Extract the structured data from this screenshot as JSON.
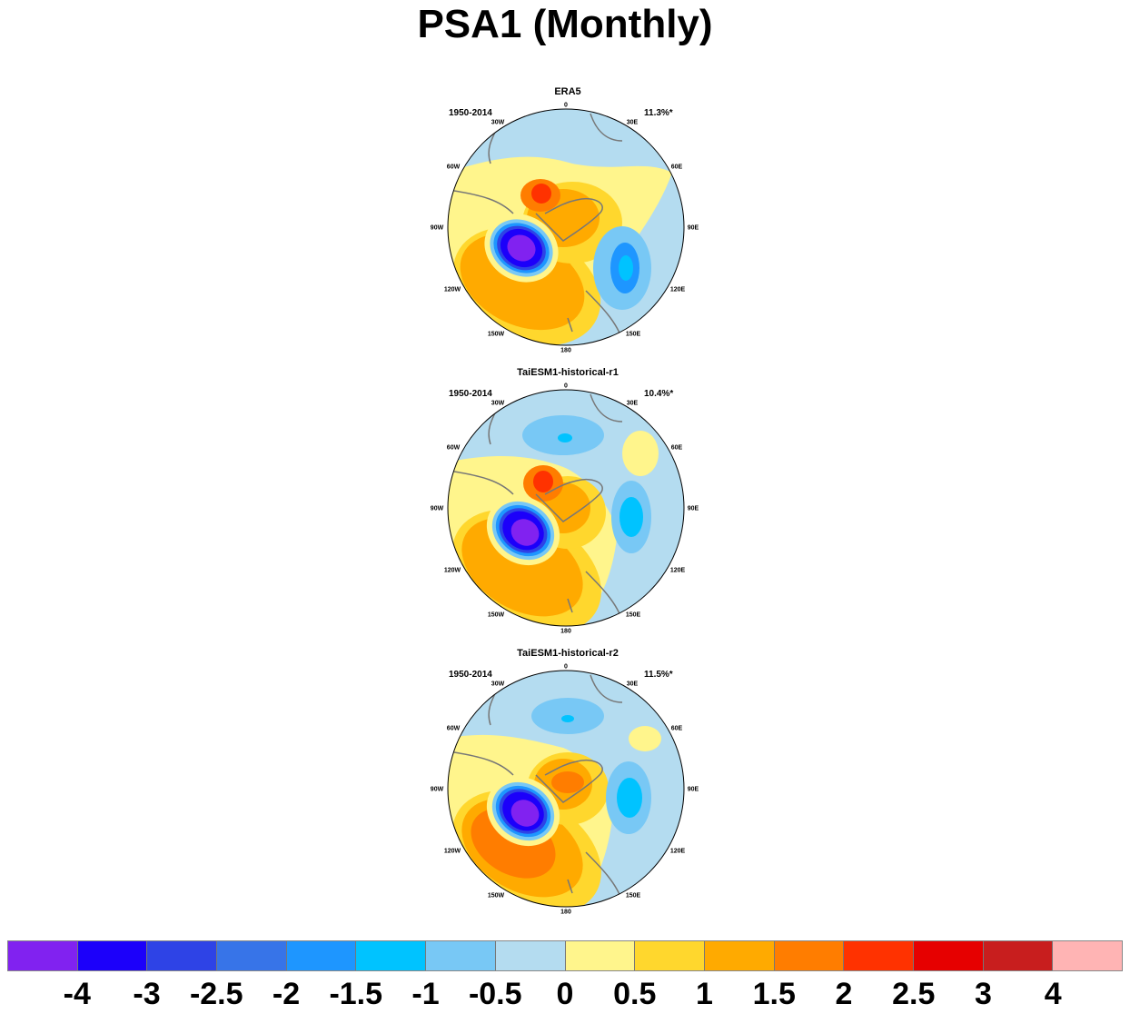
{
  "title": "PSA1 (Monthly)",
  "longitude_labels": [
    "0",
    "30E",
    "60E",
    "90E",
    "120E",
    "150E",
    "180",
    "150W",
    "120W",
    "90W",
    "60W",
    "30W"
  ],
  "panels": [
    {
      "title": "ERA5",
      "period": "1950-2014",
      "percent": "11.3%*"
    },
    {
      "title": "TaiESM1-historical-r1",
      "period": "1950-2014",
      "percent": "10.4%*"
    },
    {
      "title": "TaiESM1-historical-r2",
      "period": "1950-2014",
      "percent": "11.5%*"
    }
  ],
  "colorbar": {
    "colors": [
      "#8122f0",
      "#1c00fa",
      "#2e43e6",
      "#3774e8",
      "#1e96ff",
      "#00c3ff",
      "#78c8f5",
      "#b4dcf0",
      "#fff58c",
      "#ffd72d",
      "#ffaa00",
      "#ff7d00",
      "#ff3200",
      "#e60000",
      "#c81e1e",
      "#ffb4b4"
    ],
    "ticks": [
      "-4",
      "-3",
      "-2.5",
      "-2",
      "-1.5",
      "-1",
      "-0.5",
      "0",
      "0.5",
      "1",
      "1.5",
      "2",
      "2.5",
      "3",
      "4"
    ]
  }
}
